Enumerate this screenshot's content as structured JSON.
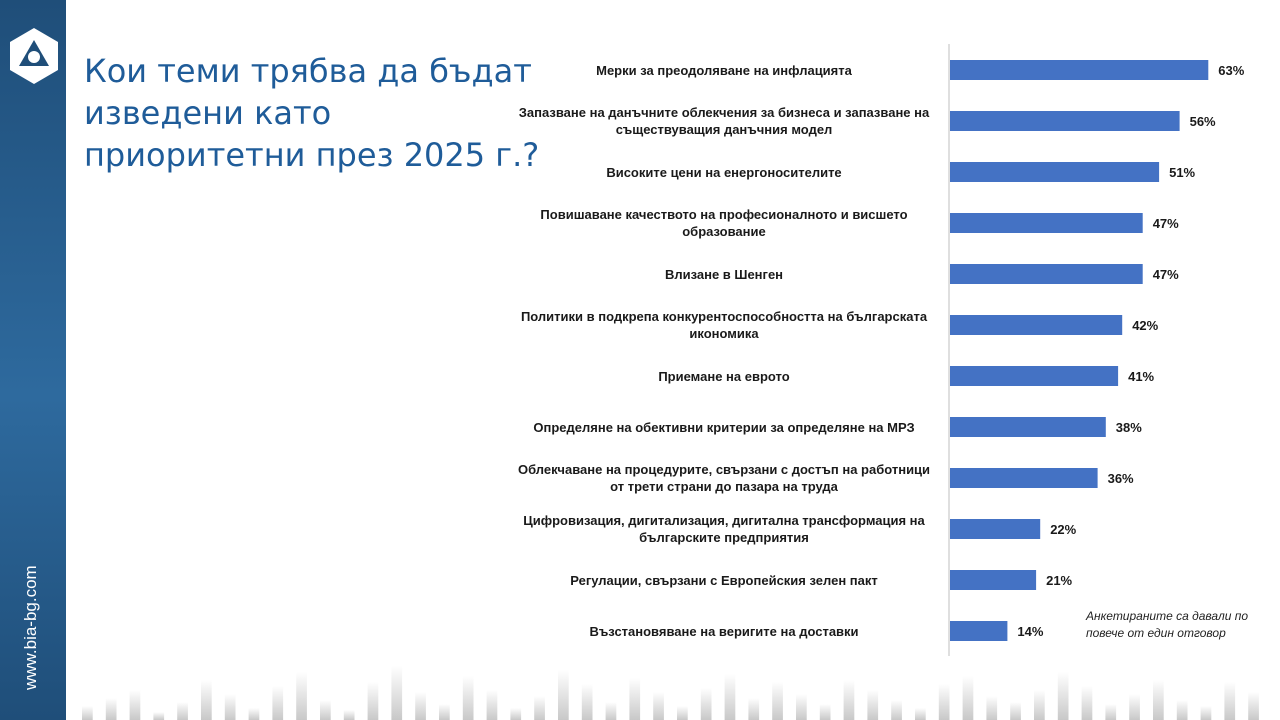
{
  "sidebar": {
    "website": "www.bia-bg.com",
    "logo_icon": "bia-triangle-logo-icon",
    "color": "#1f4e79"
  },
  "title": "Кои теми трябва да бъдат изведени като приоритетни през 2025 г.?",
  "note": "Анкетираните са давали по повече от един отговор",
  "colors": {
    "bar": "#4472c4",
    "title": "#1f5c99"
  },
  "chart_data": {
    "type": "bar",
    "orientation": "horizontal",
    "categories": [
      "Мерки за преодоляване на инфлацията",
      "Запазване на данъчните облекчения за бизнеса и запазване на съществуващия данъчния модел",
      "Високите цени на енергоносителите",
      "Повишаване качеството на професионалното и висшето образование",
      "Влизане в Шенген",
      "Политики в подкрепа конкурентоспособността на българската икономика",
      "Приемане на еврото",
      "Определяне на обективни критерии за определяне на МРЗ",
      "Облекчаване на процедурите, свързани с достъп на работници от трети страни до пазара на труда",
      "Цифровизация, дигитализация, дигитална трансформация на българските предприятия",
      "Регулации, свързани с Европейския зелен пакт",
      "Възстановяване на веригите на доставки"
    ],
    "values": [
      63,
      56,
      51,
      47,
      47,
      42,
      41,
      38,
      36,
      22,
      21,
      14
    ],
    "value_labels": [
      "63%",
      "56%",
      "51%",
      "47%",
      "47%",
      "42%",
      "41%",
      "38%",
      "36%",
      "22%",
      "21%",
      "14%"
    ],
    "xlim": [
      0,
      70
    ],
    "grid": false,
    "legend": "none"
  }
}
